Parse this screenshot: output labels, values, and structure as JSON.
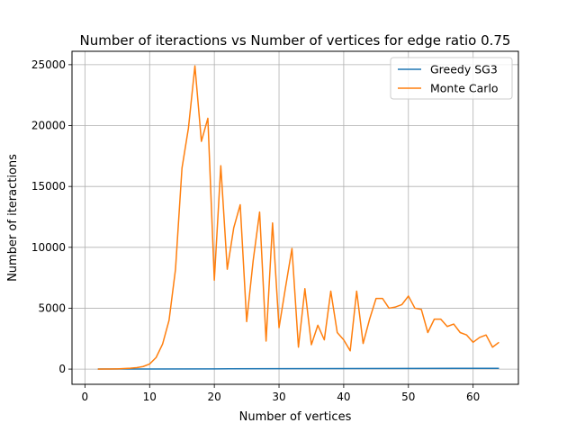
{
  "chart_data": {
    "type": "line",
    "title": "Number of iteractions vs Number of vertices for edge ratio 0.75",
    "xlabel": "Number of vertices",
    "ylabel": "Number of iteractions",
    "xlim": [
      -2,
      67
    ],
    "ylim": [
      -1250,
      26100
    ],
    "xticks": [
      0,
      10,
      20,
      30,
      40,
      50,
      60
    ],
    "yticks": [
      0,
      5000,
      10000,
      15000,
      20000,
      25000
    ],
    "grid": true,
    "legend_position": "upper-right",
    "series": [
      {
        "name": "Greedy SG3",
        "color": "#1f77b4",
        "x": [
          2,
          10,
          20,
          30,
          40,
          50,
          64
        ],
        "y": [
          2,
          10,
          20,
          30,
          40,
          50,
          64
        ]
      },
      {
        "name": "Monte Carlo",
        "color": "#ff7f0e",
        "x": [
          2,
          3,
          4,
          5,
          6,
          7,
          8,
          9,
          10,
          11,
          12,
          13,
          14,
          15,
          16,
          17,
          18,
          19,
          20,
          21,
          22,
          23,
          24,
          25,
          26,
          27,
          28,
          29,
          30,
          31,
          32,
          33,
          34,
          35,
          36,
          37,
          38,
          39,
          40,
          41,
          42,
          43,
          44,
          45,
          46,
          47,
          48,
          49,
          50,
          51,
          52,
          53,
          54,
          55,
          56,
          57,
          58,
          59,
          60,
          61,
          62,
          63,
          64
        ],
        "y": [
          0,
          5,
          10,
          20,
          40,
          70,
          120,
          210,
          420,
          950,
          2050,
          4000,
          8200,
          16500,
          19800,
          24900,
          18700,
          20600,
          7300,
          16700,
          8200,
          11600,
          13500,
          3900,
          8900,
          12900,
          2300,
          12000,
          3400,
          6700,
          9900,
          1800,
          6600,
          2000,
          3600,
          2400,
          6400,
          3000,
          2400,
          1500,
          6400,
          2100,
          4100,
          5800,
          5800,
          5000,
          5100,
          5300,
          6000,
          5000,
          4900,
          3000,
          4100,
          4100,
          3500,
          3700,
          3000,
          2800,
          2200,
          2600,
          2800,
          1800,
          2200
        ]
      }
    ]
  }
}
